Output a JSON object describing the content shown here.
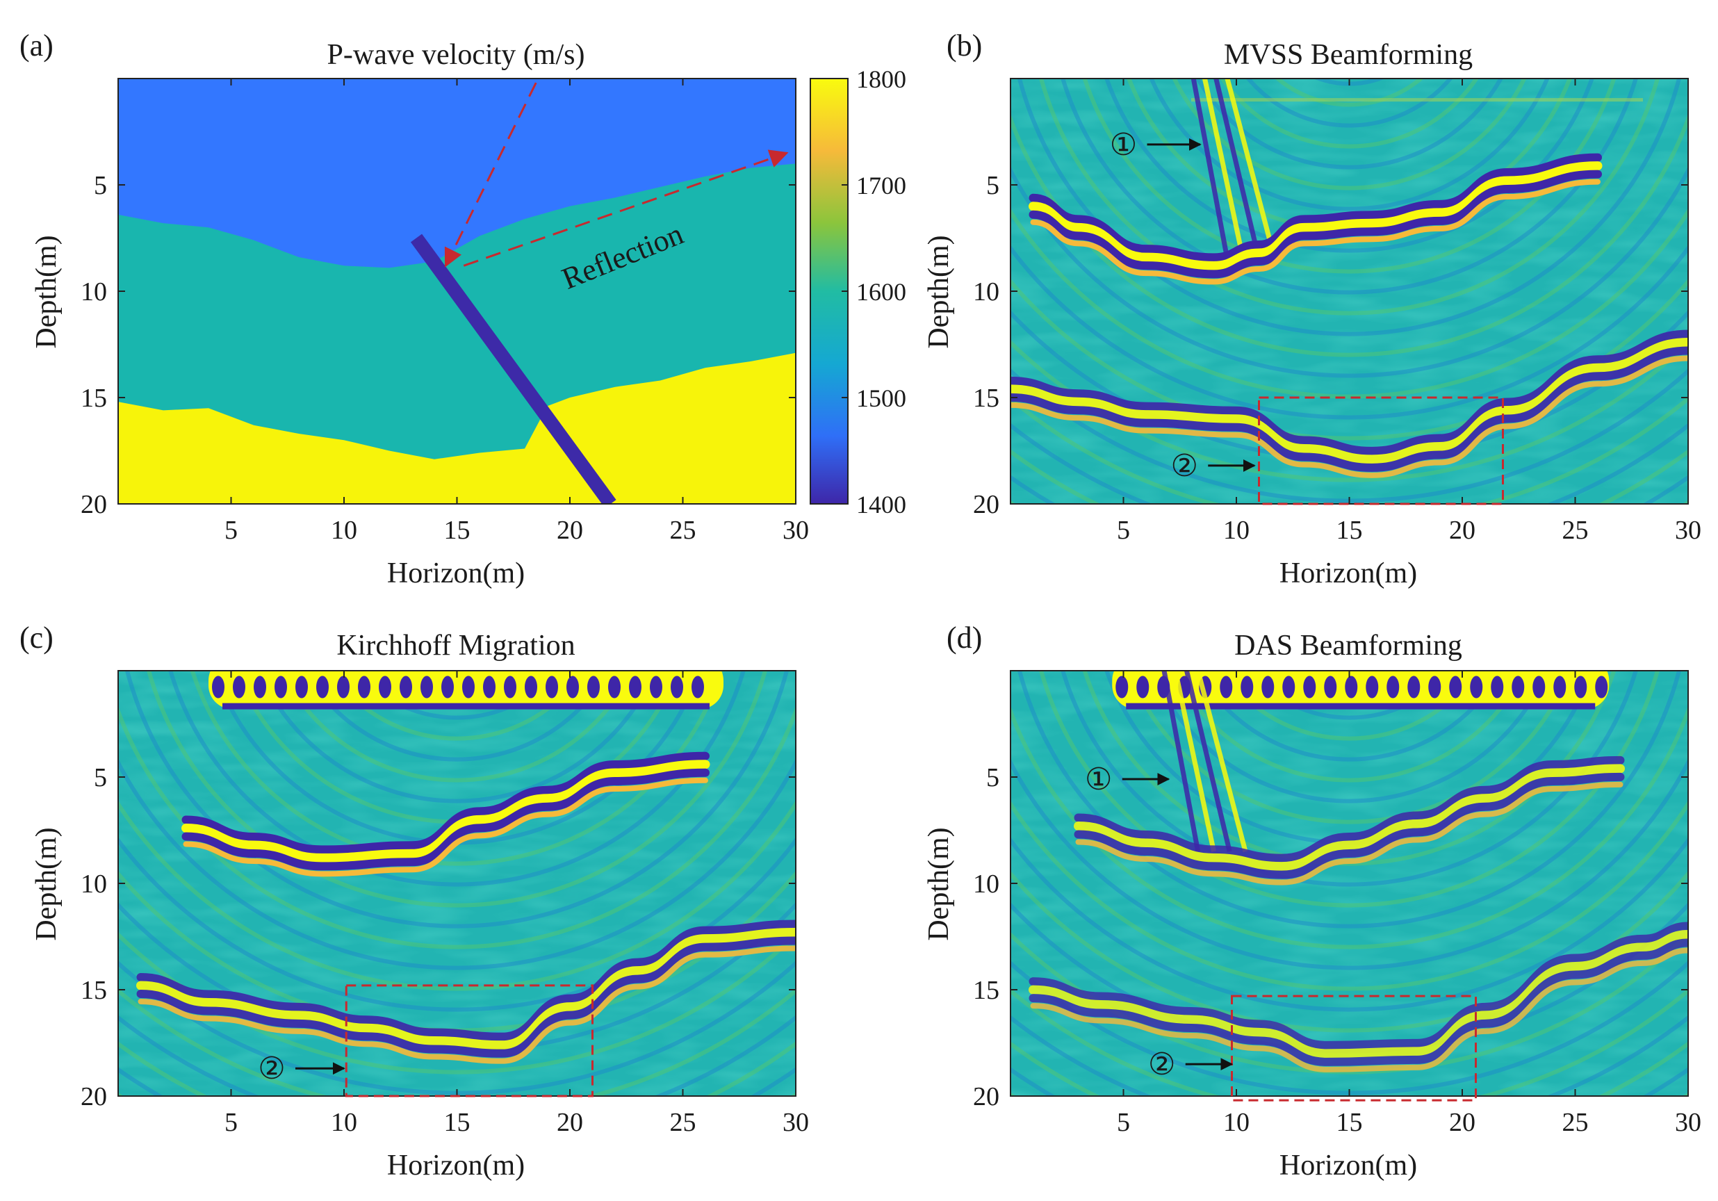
{
  "figure": {
    "colormap": [
      "#3e26a8",
      "#2f6ff7",
      "#15a8d2",
      "#21bca3",
      "#8bc53c",
      "#f6ba3a",
      "#f9fb0e"
    ],
    "colors": {
      "top_layer": "#3377ff",
      "mid_layer": "#19b6ae",
      "bottom_layer": "#f7f40a",
      "fault": "#3d2aa8",
      "background": "#22b4b2",
      "annotation_red": "#c8292e"
    }
  },
  "chart_data": [
    {
      "id": "a",
      "type": "heatmap",
      "label": "(a)",
      "title": "P-wave velocity (m/s)",
      "xlabel": "Horizon(m)",
      "ylabel": "Depth(m)",
      "xlim": [
        0,
        30
      ],
      "ylim": [
        20,
        0
      ],
      "xticks": [
        5,
        10,
        15,
        20,
        25,
        30
      ],
      "yticks": [
        5,
        10,
        15,
        20
      ],
      "colorbar": {
        "ticks": [
          1400,
          1500,
          1600,
          1700,
          1800
        ],
        "range": [
          1400,
          1800
        ]
      },
      "layers": [
        {
          "name": "top",
          "velocity": 1500,
          "base_depth": [
            [
              0,
              6.4
            ],
            [
              2,
              6.8
            ],
            [
              4,
              7.0
            ],
            [
              6,
              7.6
            ],
            [
              8,
              8.4
            ],
            [
              10,
              8.8
            ],
            [
              12,
              8.9
            ],
            [
              14,
              8.6
            ],
            [
              16,
              7.4
            ],
            [
              18,
              6.6
            ],
            [
              20,
              6.0
            ],
            [
              22,
              5.6
            ],
            [
              24,
              5.1
            ],
            [
              26,
              4.6
            ],
            [
              28,
              4.2
            ],
            [
              30,
              4.0
            ]
          ]
        },
        {
          "name": "middle",
          "velocity": 1620,
          "base_depth": [
            [
              0,
              15.2
            ],
            [
              2,
              15.6
            ],
            [
              4,
              15.5
            ],
            [
              6,
              16.3
            ],
            [
              8,
              16.7
            ],
            [
              10,
              17.0
            ],
            [
              12,
              17.5
            ],
            [
              14,
              17.9
            ],
            [
              16,
              17.6
            ],
            [
              18,
              17.4
            ],
            [
              19,
              15.4
            ],
            [
              20,
              15.0
            ],
            [
              22,
              14.5
            ],
            [
              24,
              14.2
            ],
            [
              26,
              13.6
            ],
            [
              28,
              13.3
            ],
            [
              30,
              12.9
            ]
          ]
        },
        {
          "name": "bottom",
          "velocity": 1780
        }
      ],
      "fault": {
        "velocity": 1400,
        "from": [
          13.2,
          7.5
        ],
        "to": [
          21.8,
          20
        ]
      },
      "annotations": [
        {
          "text": "Reflection",
          "x": 22.5,
          "y": 8.8,
          "rotation": -22
        }
      ],
      "arrows": [
        {
          "from": [
            18.5,
            0.2
          ],
          "to": [
            14.5,
            8.8
          ],
          "style": "dashed"
        },
        {
          "from": [
            15.3,
            8.8
          ],
          "to": [
            29.6,
            3.5
          ],
          "style": "dashed"
        }
      ]
    },
    {
      "id": "b",
      "type": "heatmap",
      "label": "(b)",
      "title": "MVSS Beamforming",
      "xlabel": "Horizon(m)",
      "ylabel": "Depth(m)",
      "xlim": [
        0,
        30
      ],
      "ylim": [
        20,
        0
      ],
      "xticks": [
        5,
        10,
        15,
        20,
        25,
        30
      ],
      "yticks": [
        5,
        10,
        15,
        20
      ],
      "reflectors": [
        {
          "points": [
            [
              1,
              6.2
            ],
            [
              3,
              7.2
            ],
            [
              6,
              8.6
            ],
            [
              9,
              9.0
            ],
            [
              11,
              8.4
            ],
            [
              13,
              7.2
            ],
            [
              16,
              7.0
            ],
            [
              19,
              6.5
            ],
            [
              22,
              5.0
            ],
            [
              26,
              4.3
            ]
          ],
          "amplitude": 1.0
        },
        {
          "points": [
            [
              0,
              14.8
            ],
            [
              3,
              15.4
            ],
            [
              6,
              16.0
            ],
            [
              10,
              16.2
            ],
            [
              13,
              17.6
            ],
            [
              16,
              18.1
            ],
            [
              19,
              17.5
            ],
            [
              22,
              15.8
            ],
            [
              26,
              13.8
            ],
            [
              30,
              12.6
            ]
          ],
          "amplitude": 0.9
        }
      ],
      "top_artifact": "weak",
      "markers": [
        {
          "text": "①",
          "x": 5.0,
          "y": 3.1,
          "arrow_to": 8.4
        },
        {
          "text": "②",
          "x": 7.7,
          "y": 18.2,
          "arrow_to": 10.8
        }
      ],
      "box": [
        11,
        15,
        21.8,
        20
      ]
    },
    {
      "id": "c",
      "type": "heatmap",
      "label": "(c)",
      "title": "Kirchhoff Migration",
      "xlabel": "Horizon(m)",
      "ylabel": "Depth(m)",
      "xlim": [
        0,
        30
      ],
      "ylim": [
        20,
        0
      ],
      "xticks": [
        5,
        10,
        15,
        20,
        25,
        30
      ],
      "yticks": [
        5,
        10,
        15,
        20
      ],
      "reflectors": [
        {
          "points": [
            [
              3,
              7.6
            ],
            [
              6,
              8.4
            ],
            [
              9,
              9.0
            ],
            [
              13,
              8.8
            ],
            [
              16,
              7.2
            ],
            [
              19,
              6.2
            ],
            [
              22,
              5.0
            ],
            [
              26,
              4.6
            ]
          ],
          "amplitude": 1.0
        },
        {
          "points": [
            [
              1,
              15.0
            ],
            [
              4,
              15.8
            ],
            [
              8,
              16.4
            ],
            [
              11,
              17.0
            ],
            [
              14,
              17.6
            ],
            [
              17,
              17.8
            ],
            [
              20,
              16.0
            ],
            [
              23,
              14.3
            ],
            [
              26,
              12.8
            ],
            [
              30,
              12.5
            ]
          ],
          "amplitude": 0.9
        }
      ],
      "top_artifact": "strong",
      "markers": [
        {
          "text": "②",
          "x": 6.8,
          "y": 18.7,
          "arrow_to": 10.0
        }
      ],
      "box": [
        10.1,
        14.8,
        21,
        20
      ]
    },
    {
      "id": "d",
      "type": "heatmap",
      "label": "(d)",
      "title": "DAS Beamforming",
      "xlabel": "Horizon(m)",
      "ylabel": "Depth(m)",
      "xlim": [
        0,
        30
      ],
      "ylim": [
        20,
        0
      ],
      "xticks": [
        5,
        10,
        15,
        20,
        25,
        30
      ],
      "yticks": [
        5,
        10,
        15,
        20
      ],
      "reflectors": [
        {
          "points": [
            [
              3,
              7.5
            ],
            [
              6,
              8.3
            ],
            [
              9,
              9.0
            ],
            [
              12,
              9.4
            ],
            [
              15,
              8.4
            ],
            [
              18,
              7.4
            ],
            [
              21,
              6.2
            ],
            [
              24,
              5.0
            ],
            [
              27,
              4.8
            ]
          ],
          "amplitude": 0.85
        },
        {
          "points": [
            [
              1,
              15.2
            ],
            [
              4,
              15.9
            ],
            [
              8,
              16.6
            ],
            [
              11,
              17.2
            ],
            [
              14,
              18.2
            ],
            [
              18,
              18.1
            ],
            [
              21,
              16.4
            ],
            [
              25,
              14.1
            ],
            [
              28,
              13.2
            ],
            [
              30,
              12.6
            ]
          ],
          "amplitude": 0.8
        }
      ],
      "top_artifact": "medium",
      "markers": [
        {
          "text": "①",
          "x": 3.9,
          "y": 5.1,
          "arrow_to": 7.0
        },
        {
          "text": "②",
          "x": 6.7,
          "y": 18.5,
          "arrow_to": 9.8
        }
      ],
      "box": [
        9.8,
        15.3,
        20.6,
        20.2
      ]
    }
  ]
}
